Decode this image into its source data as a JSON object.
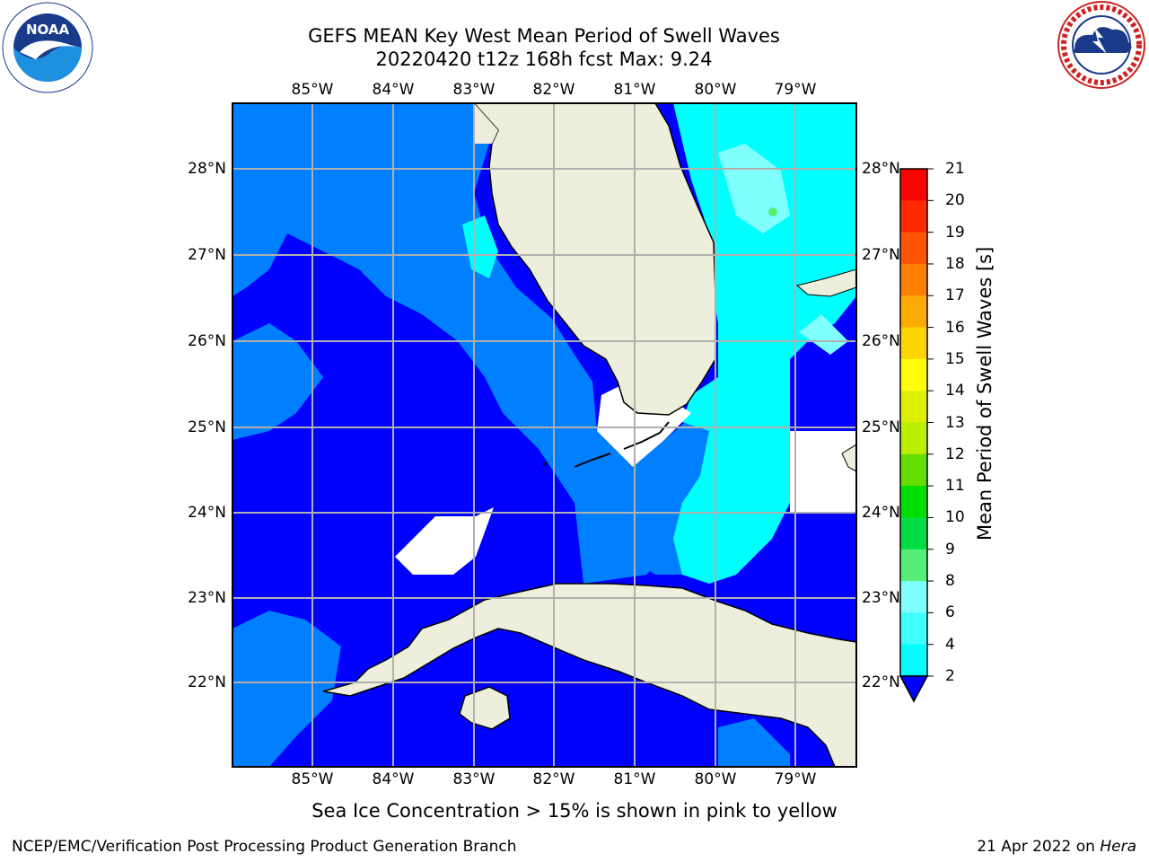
{
  "title": {
    "line1": "GEFS MEAN Key West Mean Period of Swell Waves",
    "line2": "20220420 t12z 168h fcst    Max: 9.24"
  },
  "map": {
    "lon_labels": [
      "85°W",
      "84°W",
      "83°W",
      "82°W",
      "81°W",
      "80°W",
      "79°W"
    ],
    "lat_labels": [
      "28°N",
      "27°N",
      "26°N",
      "25°N",
      "24°N",
      "23°N",
      "22°N"
    ],
    "colors": {
      "deep_blue": "#0000ff",
      "medium_blue": "#0080ff",
      "cyan": "#00ffff",
      "light_cyan": "#80ffff",
      "land": "#eeeedd",
      "grid": "#b0b0b0"
    }
  },
  "colorbar": {
    "label": "Mean Period of Swell Waves [s]",
    "ticks": [
      "21",
      "20",
      "19",
      "18",
      "17",
      "16",
      "15",
      "14",
      "13",
      "12",
      "11",
      "10",
      "9",
      "8",
      "6",
      "4",
      "2"
    ],
    "bands": [
      "#ff0000",
      "#ff2a00",
      "#ff5500",
      "#ff8000",
      "#ffaa00",
      "#ffd500",
      "#ffff00",
      "#ddf000",
      "#bbee00",
      "#66dd00",
      "#00dd00",
      "#00dd44",
      "#55ee77",
      "#80ffff",
      "#40ffff",
      "#00ffff",
      "#0080ff",
      "#0000ff"
    ]
  },
  "note": "Sea Ice Concentration > 15% is shown in pink to yellow",
  "footer": {
    "left": "NCEP/EMC/Verification Post Processing Product Generation Branch",
    "right_date": "21 Apr 2022 on ",
    "right_host": "Hera"
  },
  "logos": {
    "left": "NOAA",
    "right": "NATIONAL WEATHER SERVICE"
  }
}
